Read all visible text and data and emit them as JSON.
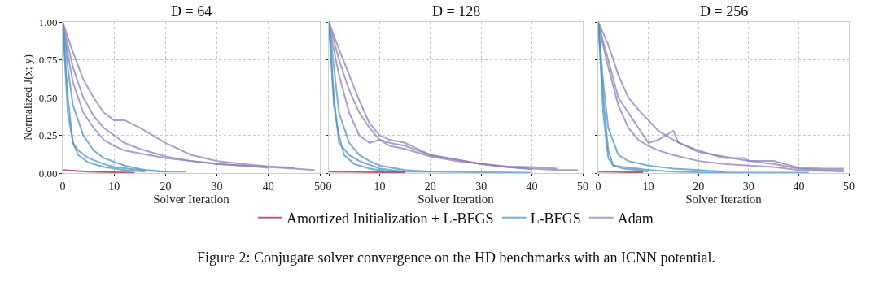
{
  "chart_data": [
    {
      "type": "line",
      "title": "D = 64",
      "xlabel": "Solver Iteration",
      "ylabel": "Normalized J(x; y)",
      "xlim": [
        0,
        50
      ],
      "xticks": [
        0,
        10,
        20,
        30,
        40,
        50
      ],
      "ylim": [
        0,
        1
      ],
      "yticks": [
        {
          "value": 0,
          "label": "0.00"
        },
        {
          "value": 0.25,
          "label": "0.25"
        },
        {
          "value": 0.5,
          "label": "0.50"
        },
        {
          "value": 0.75,
          "label": "0.75"
        },
        {
          "value": 1,
          "label": "1.00"
        }
      ],
      "grid": true,
      "legend": "bottom",
      "annotations": [
        "Figure 2: Conjugate solver convergence on the HD benchmarks with an ICNN potential."
      ],
      "series": [
        {
          "name": "Adam",
          "color": "#8c7fba",
          "x": [
            0,
            2,
            4,
            6,
            8,
            10,
            12,
            15,
            20,
            25,
            30,
            35,
            40,
            45,
            49
          ],
          "values": [
            1,
            0.7,
            0.5,
            0.38,
            0.3,
            0.25,
            0.2,
            0.16,
            0.11,
            0.08,
            0.06,
            0.05,
            0.04,
            0.03,
            0.02
          ]
        },
        {
          "color": "#8c7fba",
          "x": [
            0,
            2,
            4,
            6,
            8,
            10,
            12,
            15,
            20,
            25,
            30,
            35,
            40,
            45
          ],
          "values": [
            1,
            0.8,
            0.62,
            0.5,
            0.4,
            0.35,
            0.35,
            0.3,
            0.2,
            0.12,
            0.08,
            0.06,
            0.045,
            0.035
          ]
        },
        {
          "color": "#8c7fba",
          "x": [
            0,
            2,
            4,
            6,
            8,
            10,
            12,
            15,
            20,
            25,
            30,
            35,
            40
          ],
          "values": [
            0.98,
            0.6,
            0.4,
            0.3,
            0.22,
            0.18,
            0.15,
            0.13,
            0.1,
            0.08,
            0.06,
            0.05,
            0.035
          ]
        },
        {
          "name": "L-BFGS",
          "color": "#4f93c4",
          "x": [
            0,
            1,
            2,
            3,
            5,
            8,
            10,
            15,
            20,
            24
          ],
          "values": [
            1,
            0.5,
            0.2,
            0.15,
            0.1,
            0.06,
            0.04,
            0.02,
            0.01,
            0.01
          ]
        },
        {
          "color": "#4f93c4",
          "x": [
            0,
            1,
            2,
            4,
            6,
            8,
            12,
            16,
            20
          ],
          "values": [
            1,
            0.7,
            0.45,
            0.25,
            0.15,
            0.1,
            0.05,
            0.02,
            0.01
          ]
        },
        {
          "color": "#4f93c4",
          "x": [
            0,
            1,
            2,
            3,
            5,
            8,
            12,
            16
          ],
          "values": [
            1,
            0.4,
            0.2,
            0.12,
            0.07,
            0.04,
            0.02,
            0.01
          ]
        },
        {
          "name": "Amortized Initialization + L-BFGS",
          "color": "#a52a3c",
          "x": [
            0,
            5,
            10,
            14
          ],
          "values": [
            0.02,
            0.01,
            0.005,
            0.003
          ]
        }
      ]
    },
    {
      "type": "line",
      "title": "D = 128",
      "xlabel": "Solver Iteration",
      "xlim": [
        0,
        50
      ],
      "xticks": [
        0,
        10,
        20,
        30,
        40,
        50
      ],
      "ylim": [
        0,
        1
      ],
      "yticks": [
        {
          "value": 0,
          "label": null
        },
        {
          "value": 0.25,
          "label": null
        },
        {
          "value": 0.5,
          "label": null
        },
        {
          "value": 0.75,
          "label": null
        },
        {
          "value": 1,
          "label": null
        }
      ],
      "grid": true,
      "tick_labels": "x",
      "series": [
        {
          "color": "#8c7fba",
          "x": [
            0,
            2,
            4,
            6,
            8,
            10,
            12,
            15,
            20,
            25,
            30,
            35,
            40,
            45,
            49
          ],
          "values": [
            1,
            0.75,
            0.55,
            0.4,
            0.3,
            0.22,
            0.2,
            0.18,
            0.12,
            0.09,
            0.06,
            0.04,
            0.03,
            0.02,
            0.02
          ]
        },
        {
          "color": "#8c7fba",
          "x": [
            0,
            2,
            4,
            6,
            8,
            10,
            12,
            15,
            20,
            25,
            30,
            35,
            40,
            45
          ],
          "values": [
            1,
            0.82,
            0.65,
            0.48,
            0.33,
            0.25,
            0.22,
            0.2,
            0.12,
            0.09,
            0.06,
            0.045,
            0.04,
            0.03
          ]
        },
        {
          "color": "#8c7fba",
          "x": [
            0,
            2,
            4,
            6,
            8,
            10,
            12,
            15,
            20,
            25,
            30,
            35,
            40
          ],
          "values": [
            0.98,
            0.65,
            0.4,
            0.25,
            0.2,
            0.22,
            0.18,
            0.16,
            0.11,
            0.08,
            0.06,
            0.04,
            0.025
          ]
        },
        {
          "color": "#4f93c4",
          "x": [
            0,
            1,
            2,
            4,
            6,
            10,
            15,
            20,
            30,
            40
          ],
          "values": [
            1,
            0.5,
            0.2,
            0.12,
            0.08,
            0.03,
            0.01,
            0.01,
            0.005,
            0.003
          ]
        },
        {
          "color": "#4f93c4",
          "x": [
            0,
            1,
            2,
            4,
            6,
            8,
            10,
            15,
            20
          ],
          "values": [
            1,
            0.7,
            0.4,
            0.2,
            0.12,
            0.08,
            0.05,
            0.02,
            0.01
          ]
        },
        {
          "color": "#4f93c4",
          "x": [
            0,
            1,
            2,
            3,
            5,
            8,
            12,
            15
          ],
          "values": [
            1,
            0.45,
            0.25,
            0.12,
            0.06,
            0.03,
            0.01,
            0.01
          ]
        },
        {
          "color": "#a52a3c",
          "x": [
            0,
            5,
            10,
            15
          ],
          "values": [
            0.01,
            0.008,
            0.005,
            0.003
          ]
        }
      ]
    },
    {
      "type": "line",
      "title": "D = 256",
      "xlabel": "Solver Iteration",
      "xlim": [
        0,
        50
      ],
      "xticks": [
        0,
        10,
        20,
        30,
        40,
        50
      ],
      "ylim": [
        0,
        1
      ],
      "yticks": [
        {
          "value": 0,
          "label": null
        },
        {
          "value": 0.25,
          "label": null
        },
        {
          "value": 0.5,
          "label": null
        },
        {
          "value": 0.75,
          "label": null
        },
        {
          "value": 1,
          "label": null
        }
      ],
      "grid": true,
      "tick_labels": "x",
      "series": [
        {
          "color": "#8c7fba",
          "x": [
            0,
            2,
            4,
            6,
            8,
            10,
            12,
            15,
            20,
            25,
            30,
            35,
            40,
            45,
            49
          ],
          "values": [
            1,
            0.85,
            0.65,
            0.5,
            0.42,
            0.35,
            0.28,
            0.22,
            0.14,
            0.11,
            0.08,
            0.06,
            0.03,
            0.02,
            0.02
          ]
        },
        {
          "color": "#8c7fba",
          "x": [
            0,
            2,
            4,
            6,
            8,
            10,
            12,
            15,
            20,
            25,
            30,
            35,
            40,
            45,
            49
          ],
          "values": [
            0.98,
            0.7,
            0.45,
            0.3,
            0.22,
            0.18,
            0.15,
            0.12,
            0.08,
            0.06,
            0.05,
            0.04,
            0.02,
            0.015,
            0.01
          ]
        },
        {
          "color": "#8c7fba",
          "x": [
            0,
            2,
            4,
            6,
            8,
            10,
            12,
            15,
            16,
            20,
            25,
            29,
            30,
            35,
            40,
            45,
            49
          ],
          "values": [
            0.99,
            0.75,
            0.5,
            0.4,
            0.3,
            0.2,
            0.22,
            0.28,
            0.2,
            0.15,
            0.1,
            0.1,
            0.08,
            0.08,
            0.035,
            0.03,
            0.03
          ]
        },
        {
          "color": "#4f93c4",
          "x": [
            0,
            1,
            2,
            3,
            5,
            8,
            10,
            15,
            20,
            30,
            42
          ],
          "values": [
            1,
            0.5,
            0.15,
            0.05,
            0.04,
            0.03,
            0.02,
            0.01,
            0.005,
            0.003,
            0.003
          ]
        },
        {
          "color": "#4f93c4",
          "x": [
            0,
            1,
            2,
            4,
            6,
            10,
            15,
            20,
            25
          ],
          "values": [
            1,
            0.6,
            0.3,
            0.12,
            0.08,
            0.05,
            0.03,
            0.02,
            0.01
          ]
        },
        {
          "color": "#4f93c4",
          "x": [
            0,
            1,
            2,
            3,
            5,
            8,
            10
          ],
          "values": [
            1,
            0.4,
            0.1,
            0.05,
            0.03,
            0.02,
            0.01
          ]
        },
        {
          "color": "#a52a3c",
          "x": [
            0,
            3,
            6,
            9
          ],
          "values": [
            0.01,
            0.008,
            0.006,
            0.005
          ]
        }
      ]
    }
  ]
}
